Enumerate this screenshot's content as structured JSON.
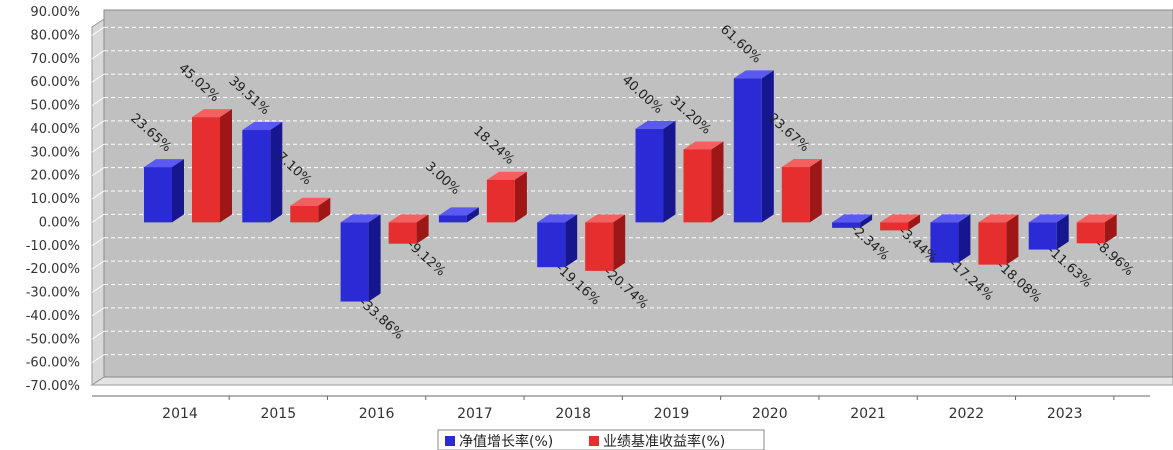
{
  "chart_data": {
    "type": "bar",
    "categories": [
      "2014",
      "2015",
      "2016",
      "2017",
      "2018",
      "2019",
      "2020",
      "2021",
      "2022",
      "2023"
    ],
    "series": [
      {
        "name": "净值增长率(%)",
        "values": [
          23.65,
          39.51,
          -33.86,
          3.0,
          -19.16,
          40.0,
          61.6,
          -2.34,
          -17.24,
          -11.63
        ],
        "labels": [
          "23.65%",
          "39.51%",
          "-33.86%",
          "3.00%",
          "-19.16%",
          "40.00%",
          "61.60%",
          "-2.34%",
          "-17.24%",
          "-11.63%"
        ]
      },
      {
        "name": "业绩基准收益率(%)",
        "values": [
          45.02,
          7.1,
          -9.12,
          18.24,
          -20.74,
          31.2,
          23.67,
          -3.44,
          -18.08,
          -8.96
        ],
        "labels": [
          "45.02%",
          "7.10%",
          "-9.12%",
          "18.24%",
          "-20.74%",
          "31.20%",
          "23.67%",
          "-3.44%",
          "-18.08%",
          "-8.96%"
        ]
      }
    ],
    "y_ticks": [
      "90.00%",
      "80.00%",
      "70.00%",
      "60.00%",
      "50.00%",
      "40.00%",
      "30.00%",
      "20.00%",
      "10.00%",
      "0.00%",
      "-10.00%",
      "-20.00%",
      "-30.00%",
      "-40.00%",
      "-50.00%",
      "-60.00%",
      "-70.00%"
    ],
    "ylim": [
      -70,
      90
    ],
    "grid": true,
    "legend_position": "bottom-center",
    "colors": {
      "series1": "#2b2bd6",
      "series1_side": "#16168f",
      "series1_top": "#5a5af0",
      "series2": "#e62e2e",
      "series2_side": "#9e1616",
      "series2_top": "#f46060",
      "plot_bg": "#c0c0c0",
      "wall": "#d8d8d8",
      "floor": "#e4e4e4"
    }
  }
}
